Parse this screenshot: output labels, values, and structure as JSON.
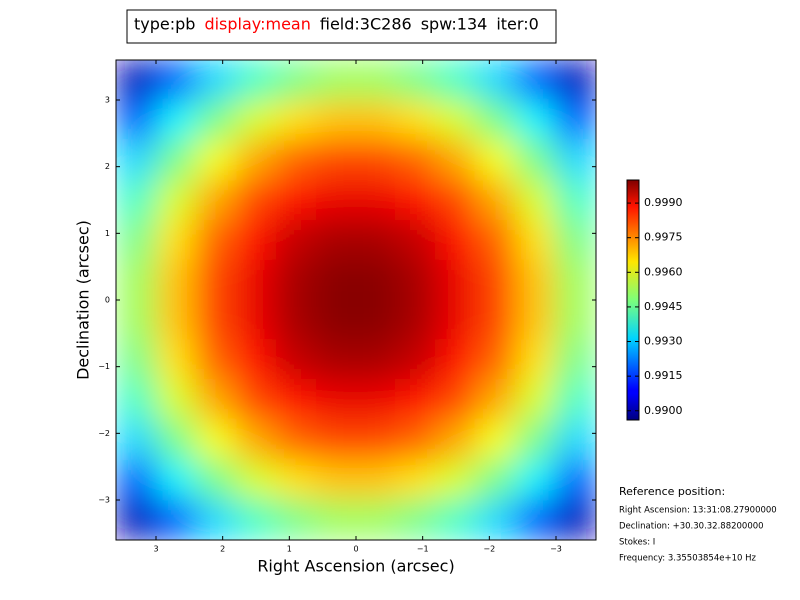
{
  "chart_data": {
    "type": "image",
    "title_parts": [
      {
        "text": "type:pb",
        "color": "#000000"
      },
      {
        "text": "display:mean",
        "color": "#ff0000"
      },
      {
        "text": "field:3C286",
        "color": "#000000"
      },
      {
        "text": "spw:134",
        "color": "#000000"
      },
      {
        "text": "iter:0",
        "color": "#000000"
      }
    ],
    "x_label": "Right Ascension (arcsec)",
    "y_label": "Declination (arcsec)",
    "xlim": [
      3.6,
      -3.6
    ],
    "ylim": [
      -3.6,
      3.6
    ],
    "xticks": [
      3,
      2,
      1,
      0,
      {
        "value": -1,
        "label": "−1"
      },
      {
        "value": -2,
        "label": "−2"
      },
      {
        "value": -3,
        "label": "−3"
      }
    ],
    "yticks": [
      {
        "value": -3,
        "label": "−3"
      },
      {
        "value": -2,
        "label": "−2"
      },
      {
        "value": -1,
        "label": "−1"
      },
      0,
      1,
      2,
      3
    ],
    "x": [
      3.3,
      2.7,
      2.1,
      1.5,
      0.9,
      0.3,
      -0.3,
      -0.9,
      -1.5,
      -2.1,
      -2.7,
      -3.3
    ],
    "y": [
      3.3,
      2.7,
      2.1,
      1.5,
      0.9,
      0.3,
      -0.3,
      -0.9,
      -1.5,
      -2.1,
      -2.7,
      -3.3
    ],
    "z": [
      [
        0.9902,
        0.9918,
        0.9931,
        0.9941,
        0.9947,
        0.9951,
        0.9951,
        0.9947,
        0.9941,
        0.9931,
        0.9918,
        0.9902
      ],
      [
        0.9918,
        0.9934,
        0.9947,
        0.9957,
        0.9964,
        0.9967,
        0.9967,
        0.9964,
        0.9957,
        0.9947,
        0.9934,
        0.9918
      ],
      [
        0.9931,
        0.9947,
        0.996,
        0.997,
        0.9977,
        0.998,
        0.998,
        0.9977,
        0.997,
        0.996,
        0.9947,
        0.9931
      ],
      [
        0.9941,
        0.9957,
        0.997,
        0.998,
        0.9986,
        0.9989,
        0.9989,
        0.9986,
        0.998,
        0.997,
        0.9957,
        0.9941
      ],
      [
        0.9947,
        0.9964,
        0.9977,
        0.9986,
        0.9993,
        0.9996,
        0.9996,
        0.9993,
        0.9986,
        0.9977,
        0.9964,
        0.9947
      ],
      [
        0.9951,
        0.9967,
        0.998,
        0.9989,
        0.9996,
        0.9999,
        0.9999,
        0.9996,
        0.9989,
        0.998,
        0.9967,
        0.9951
      ],
      [
        0.9951,
        0.9967,
        0.998,
        0.9989,
        0.9996,
        0.9999,
        0.9999,
        0.9996,
        0.9989,
        0.998,
        0.9967,
        0.9951
      ],
      [
        0.9947,
        0.9964,
        0.9977,
        0.9986,
        0.9993,
        0.9996,
        0.9996,
        0.9993,
        0.9986,
        0.9977,
        0.9964,
        0.9947
      ],
      [
        0.9941,
        0.9957,
        0.997,
        0.998,
        0.9986,
        0.9989,
        0.9989,
        0.9986,
        0.998,
        0.997,
        0.9957,
        0.9941
      ],
      [
        0.9931,
        0.9947,
        0.996,
        0.997,
        0.9977,
        0.998,
        0.998,
        0.9977,
        0.997,
        0.996,
        0.9947,
        0.9931
      ],
      [
        0.9918,
        0.9934,
        0.9947,
        0.9957,
        0.9964,
        0.9967,
        0.9967,
        0.9964,
        0.9957,
        0.9947,
        0.9934,
        0.9918
      ],
      [
        0.9902,
        0.9918,
        0.9931,
        0.9941,
        0.9947,
        0.9951,
        0.9951,
        0.9947,
        0.9941,
        0.9931,
        0.9918,
        0.9902
      ]
    ],
    "colormap": "jet",
    "clim": [
      0.9896,
      1.0
    ],
    "cticks": [
      {
        "value": 0.99,
        "label": "0.9900"
      },
      0.9915,
      {
        "value": 0.993,
        "label": "0.9930"
      },
      0.9945,
      {
        "value": 0.996,
        "label": "0.9960"
      },
      0.9975,
      {
        "value": 0.999,
        "label": "0.9990"
      }
    ],
    "annotations": [
      "Reference position:",
      "Right Ascension: 13:31:08.27900000",
      "Declination: +30.30.32.88200000",
      "Stokes: I",
      "Frequency: 3.35503854e+10 Hz"
    ]
  }
}
